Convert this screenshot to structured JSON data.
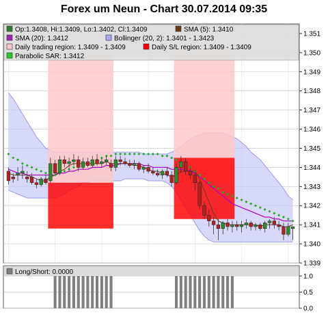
{
  "chart_data": [
    {
      "type": "candlestick",
      "title": "Forex um Neun - Chart 30.07.2014 09:35",
      "ylim": [
        1.339,
        1.3515
      ],
      "yticks": [
        "1.339",
        "1.340",
        "1.341",
        "1.342",
        "1.343",
        "1.344",
        "1.345",
        "1.346",
        "1.347",
        "1.348",
        "1.349",
        "1.350",
        "1.351"
      ],
      "grid": true,
      "legend_placement": "top-left",
      "legend": [
        {
          "text": "Op:1.3408, Hi:1.3409, Lo:1.3402, Cl:1.3409",
          "color": "#2e7d32"
        },
        {
          "text": "SMA (5): 1.3410",
          "color": "#6b3a14"
        },
        {
          "text": "SMA (20): 1.3412",
          "color": "#9c27b0"
        },
        {
          "text": "Bollinger (20, 2): 1.3401 - 1.3423",
          "color": "#a8a8f0"
        },
        {
          "text": "Daily trading region: 1.3409 - 1.3409",
          "color": "#ffc8c8"
        },
        {
          "text": "Daily S/L region: 1.3409 - 1.3409",
          "color": "#ff0000"
        },
        {
          "text": "Parabolic SAR: 1.3412",
          "color": "#22cc22"
        }
      ],
      "candles": [
        {
          "o": 1.3438,
          "h": 1.344,
          "l": 1.3431,
          "c": 1.3433
        },
        {
          "o": 1.3435,
          "h": 1.3437,
          "l": 1.3432,
          "c": 1.3434
        },
        {
          "o": 1.3436,
          "h": 1.344,
          "l": 1.3433,
          "c": 1.3437
        },
        {
          "o": 1.3437,
          "h": 1.3441,
          "l": 1.3434,
          "c": 1.3438
        },
        {
          "o": 1.3435,
          "h": 1.3438,
          "l": 1.3432,
          "c": 1.3434
        },
        {
          "o": 1.3435,
          "h": 1.3437,
          "l": 1.3431,
          "c": 1.3432
        },
        {
          "o": 1.3432,
          "h": 1.3434,
          "l": 1.3429,
          "c": 1.3431
        },
        {
          "o": 1.3431,
          "h": 1.3435,
          "l": 1.343,
          "c": 1.3434
        },
        {
          "o": 1.3434,
          "h": 1.3436,
          "l": 1.3431,
          "c": 1.3432
        },
        {
          "o": 1.3433,
          "h": 1.3445,
          "l": 1.3432,
          "c": 1.3442
        },
        {
          "o": 1.3442,
          "h": 1.3444,
          "l": 1.3436,
          "c": 1.3437
        },
        {
          "o": 1.3437,
          "h": 1.3446,
          "l": 1.3436,
          "c": 1.3444
        },
        {
          "o": 1.3444,
          "h": 1.3446,
          "l": 1.344,
          "c": 1.3442
        },
        {
          "o": 1.3442,
          "h": 1.3445,
          "l": 1.3439,
          "c": 1.3443
        },
        {
          "o": 1.3443,
          "h": 1.3447,
          "l": 1.3441,
          "c": 1.3444
        },
        {
          "o": 1.3444,
          "h": 1.3446,
          "l": 1.3438,
          "c": 1.344
        },
        {
          "o": 1.344,
          "h": 1.3445,
          "l": 1.3439,
          "c": 1.3443
        },
        {
          "o": 1.3443,
          "h": 1.3445,
          "l": 1.344,
          "c": 1.3441
        },
        {
          "o": 1.3441,
          "h": 1.3446,
          "l": 1.344,
          "c": 1.3444
        },
        {
          "o": 1.3444,
          "h": 1.3447,
          "l": 1.3441,
          "c": 1.3442
        },
        {
          "o": 1.3442,
          "h": 1.3445,
          "l": 1.344,
          "c": 1.3443
        },
        {
          "o": 1.3443,
          "h": 1.3446,
          "l": 1.3441,
          "c": 1.3444
        },
        {
          "o": 1.3442,
          "h": 1.3444,
          "l": 1.3438,
          "c": 1.344
        },
        {
          "o": 1.344,
          "h": 1.3446,
          "l": 1.3438,
          "c": 1.3444
        },
        {
          "o": 1.3444,
          "h": 1.3446,
          "l": 1.3441,
          "c": 1.3443
        },
        {
          "o": 1.3443,
          "h": 1.3445,
          "l": 1.3441,
          "c": 1.3442
        },
        {
          "o": 1.3442,
          "h": 1.3444,
          "l": 1.344,
          "c": 1.3441
        },
        {
          "o": 1.3441,
          "h": 1.3444,
          "l": 1.3439,
          "c": 1.3442
        },
        {
          "o": 1.3442,
          "h": 1.3443,
          "l": 1.3438,
          "c": 1.3439
        },
        {
          "o": 1.3439,
          "h": 1.3441,
          "l": 1.3437,
          "c": 1.344
        },
        {
          "o": 1.344,
          "h": 1.3442,
          "l": 1.3437,
          "c": 1.3438
        },
        {
          "o": 1.3438,
          "h": 1.344,
          "l": 1.3436,
          "c": 1.3437
        },
        {
          "o": 1.3437,
          "h": 1.3439,
          "l": 1.3435,
          "c": 1.3436
        },
        {
          "o": 1.3436,
          "h": 1.3439,
          "l": 1.3434,
          "c": 1.3438
        },
        {
          "o": 1.3438,
          "h": 1.344,
          "l": 1.3435,
          "c": 1.3436
        },
        {
          "o": 1.3436,
          "h": 1.3438,
          "l": 1.343,
          "c": 1.3432
        },
        {
          "o": 1.3432,
          "h": 1.3442,
          "l": 1.3431,
          "c": 1.344
        },
        {
          "o": 1.344,
          "h": 1.3446,
          "l": 1.3437,
          "c": 1.3443
        },
        {
          "o": 1.3443,
          "h": 1.3445,
          "l": 1.3436,
          "c": 1.3438
        },
        {
          "o": 1.3438,
          "h": 1.344,
          "l": 1.3434,
          "c": 1.3436
        },
        {
          "o": 1.3436,
          "h": 1.3439,
          "l": 1.3428,
          "c": 1.3432
        },
        {
          "o": 1.3432,
          "h": 1.3433,
          "l": 1.3418,
          "c": 1.342
        },
        {
          "o": 1.342,
          "h": 1.3422,
          "l": 1.3413,
          "c": 1.3415
        },
        {
          "o": 1.3415,
          "h": 1.3418,
          "l": 1.3409,
          "c": 1.3412
        },
        {
          "o": 1.3412,
          "h": 1.3414,
          "l": 1.3405,
          "c": 1.341
        },
        {
          "o": 1.341,
          "h": 1.3413,
          "l": 1.3402,
          "c": 1.3408
        },
        {
          "o": 1.3408,
          "h": 1.3412,
          "l": 1.3405,
          "c": 1.3411
        },
        {
          "o": 1.3411,
          "h": 1.3413,
          "l": 1.3407,
          "c": 1.3409
        },
        {
          "o": 1.3409,
          "h": 1.3412,
          "l": 1.3406,
          "c": 1.341
        },
        {
          "o": 1.341,
          "h": 1.3412,
          "l": 1.3407,
          "c": 1.3409
        },
        {
          "o": 1.3409,
          "h": 1.3412,
          "l": 1.3406,
          "c": 1.341
        },
        {
          "o": 1.341,
          "h": 1.3413,
          "l": 1.3408,
          "c": 1.3411
        },
        {
          "o": 1.3411,
          "h": 1.3412,
          "l": 1.3407,
          "c": 1.3409
        },
        {
          "o": 1.3409,
          "h": 1.3411,
          "l": 1.3407,
          "c": 1.341
        },
        {
          "o": 1.341,
          "h": 1.3411,
          "l": 1.3407,
          "c": 1.3408
        },
        {
          "o": 1.3408,
          "h": 1.3412,
          "l": 1.3406,
          "c": 1.3411
        },
        {
          "o": 1.3411,
          "h": 1.3413,
          "l": 1.3408,
          "c": 1.3412
        },
        {
          "o": 1.3412,
          "h": 1.3414,
          "l": 1.3408,
          "c": 1.341
        },
        {
          "o": 1.341,
          "h": 1.3412,
          "l": 1.3407,
          "c": 1.3409
        },
        {
          "o": 1.3409,
          "h": 1.3411,
          "l": 1.3402,
          "c": 1.3405
        },
        {
          "o": 1.3405,
          "h": 1.3411,
          "l": 1.3404,
          "c": 1.3409
        },
        {
          "o": 1.3408,
          "h": 1.3409,
          "l": 1.3402,
          "c": 1.3409
        }
      ],
      "sma5": [
        1.3437,
        1.3436,
        1.3436,
        1.3436,
        1.3436,
        1.3435,
        1.3434,
        1.3433,
        1.3433,
        1.3435,
        1.3436,
        1.3438,
        1.3439,
        1.3441,
        1.3442,
        1.3442,
        1.3442,
        1.3442,
        1.3442,
        1.3442,
        1.3442,
        1.3443,
        1.3442,
        1.3442,
        1.3442,
        1.3442,
        1.3442,
        1.3441,
        1.3441,
        1.344,
        1.3439,
        1.3438,
        1.3438,
        1.3437,
        1.3436,
        1.3435,
        1.3436,
        1.3438,
        1.3438,
        1.3438,
        1.3438,
        1.3434,
        1.3428,
        1.3422,
        1.3416,
        1.3412,
        1.3411,
        1.341,
        1.341,
        1.341,
        1.341,
        1.341,
        1.341,
        1.341,
        1.3409,
        1.341,
        1.341,
        1.341,
        1.341,
        1.3409,
        1.3409,
        1.341
      ],
      "sma20": [
        1.3439,
        1.3438,
        1.3437,
        1.3437,
        1.3436,
        1.3436,
        1.3436,
        1.3436,
        1.3436,
        1.3436,
        1.3436,
        1.3437,
        1.3437,
        1.3438,
        1.3438,
        1.3439,
        1.3439,
        1.3439,
        1.344,
        1.344,
        1.344,
        1.3441,
        1.3441,
        1.3441,
        1.3442,
        1.3442,
        1.3442,
        1.3442,
        1.3442,
        1.3441,
        1.3441,
        1.344,
        1.344,
        1.344,
        1.344,
        1.3439,
        1.3439,
        1.3439,
        1.3439,
        1.3438,
        1.3437,
        1.3435,
        1.3433,
        1.3431,
        1.3429,
        1.3427,
        1.3425,
        1.3423,
        1.3421,
        1.342,
        1.3419,
        1.3418,
        1.3417,
        1.3416,
        1.3415,
        1.3414,
        1.3414,
        1.3413,
        1.3413,
        1.3412,
        1.3412,
        1.3412
      ],
      "bollinger_upper": [
        1.3479,
        1.3476,
        1.3472,
        1.3468,
        1.3464,
        1.346,
        1.3456,
        1.3453,
        1.345,
        1.3449,
        1.3448,
        1.3448,
        1.3448,
        1.3448,
        1.3448,
        1.3448,
        1.3448,
        1.3448,
        1.3448,
        1.3448,
        1.3448,
        1.3448,
        1.3448,
        1.3448,
        1.3448,
        1.3448,
        1.3448,
        1.3448,
        1.3448,
        1.3447,
        1.3447,
        1.3447,
        1.3447,
        1.3447,
        1.3447,
        1.3448,
        1.3449,
        1.3451,
        1.3453,
        1.3455,
        1.3456,
        1.3457,
        1.3458,
        1.3458,
        1.3458,
        1.3458,
        1.3458,
        1.3457,
        1.3456,
        1.3455,
        1.3453,
        1.3451,
        1.3448,
        1.3446,
        1.3444,
        1.3441,
        1.3438,
        1.3435,
        1.3432,
        1.3429,
        1.3425,
        1.3423
      ],
      "bollinger_lower": [
        1.3428,
        1.3427,
        1.3426,
        1.3425,
        1.3424,
        1.3424,
        1.3424,
        1.3424,
        1.3424,
        1.3424,
        1.3424,
        1.3425,
        1.3426,
        1.3428,
        1.3429,
        1.343,
        1.3432,
        1.3432,
        1.3433,
        1.3433,
        1.3433,
        1.3433,
        1.3433,
        1.3433,
        1.3433,
        1.3434,
        1.3434,
        1.3434,
        1.3434,
        1.3434,
        1.3433,
        1.3433,
        1.3433,
        1.3433,
        1.3432,
        1.343,
        1.3427,
        1.3423,
        1.3419,
        1.3415,
        1.3411,
        1.3407,
        1.3404,
        1.3402,
        1.3401,
        1.3401,
        1.3401,
        1.3401,
        1.3401,
        1.3401,
        1.3401,
        1.3401,
        1.3401,
        1.3401,
        1.3401,
        1.3401,
        1.3401,
        1.3401,
        1.3401,
        1.3401,
        1.3401,
        1.3401
      ],
      "parabolic_sar": [
        1.3447,
        1.3445,
        1.3444,
        1.3442,
        1.3441,
        1.344,
        1.3439,
        1.3438,
        1.3437,
        1.3436,
        1.3436,
        1.3437,
        1.3438,
        1.3439,
        1.344,
        1.3441,
        1.3441,
        1.3442,
        1.3443,
        1.3444,
        1.3445,
        1.3446,
        1.3446,
        1.3447,
        1.3447,
        1.3447,
        1.3447,
        1.3447,
        1.3447,
        1.3447,
        1.3447,
        1.3447,
        1.3447,
        1.3446,
        1.3446,
        1.3445,
        1.3444,
        1.3442,
        1.3441,
        1.344,
        1.3438,
        1.3436,
        1.3434,
        1.3432,
        1.343,
        1.3429,
        1.3427,
        1.3426,
        1.3425,
        1.3424,
        1.3423,
        1.3422,
        1.3421,
        1.342,
        1.3419,
        1.3418,
        1.3417,
        1.3416,
        1.3415,
        1.3414,
        1.3413,
        1.3412
      ],
      "trading_regions": [
        {
          "start_index": 9,
          "end_index": 22,
          "low": 1.3432,
          "high": 1.3499
        },
        {
          "start_index": 36,
          "end_index": 48,
          "low": 1.3432,
          "high": 1.3503
        }
      ],
      "sl_regions": [
        {
          "start_index": 9,
          "end_index": 22,
          "low": 1.3408,
          "high": 1.3432
        },
        {
          "start_index": 36,
          "end_index": 48,
          "low": 1.3413,
          "high": 1.3445
        }
      ]
    },
    {
      "type": "bar",
      "legend": [
        {
          "text": "Long/Short: 0.0000",
          "color": "#808080"
        }
      ],
      "ylim": [
        0,
        1
      ],
      "yticks": [
        "1.0",
        "0.5",
        "0.0"
      ],
      "bars": [
        {
          "index": 10,
          "value": 1
        },
        {
          "index": 11,
          "value": 1
        },
        {
          "index": 12,
          "value": 1
        },
        {
          "index": 13,
          "value": 1
        },
        {
          "index": 14,
          "value": 1
        },
        {
          "index": 15,
          "value": 1
        },
        {
          "index": 16,
          "value": 1
        },
        {
          "index": 17,
          "value": 1
        },
        {
          "index": 18,
          "value": 1
        },
        {
          "index": 19,
          "value": 1
        },
        {
          "index": 20,
          "value": 1
        },
        {
          "index": 21,
          "value": 1
        },
        {
          "index": 22,
          "value": 1
        },
        {
          "index": 36,
          "value": 1
        },
        {
          "index": 37,
          "value": 1
        },
        {
          "index": 38,
          "value": 1
        },
        {
          "index": 39,
          "value": 1
        },
        {
          "index": 40,
          "value": 1
        },
        {
          "index": 41,
          "value": 1
        },
        {
          "index": 42,
          "value": 1
        },
        {
          "index": 43,
          "value": 1
        },
        {
          "index": 44,
          "value": 1
        },
        {
          "index": 45,
          "value": 1
        },
        {
          "index": 46,
          "value": 1
        },
        {
          "index": 47,
          "value": 1
        },
        {
          "index": 48,
          "value": 1
        }
      ]
    }
  ],
  "colors": {
    "up": "#2e8b2e",
    "down": "#b22222",
    "sma5": "#6b3a14",
    "sma20": "#b000c8",
    "band_fill": "#c8c8f5",
    "band_line": "#9a9af0",
    "trading_region": "#ffc8c8",
    "sl_region": "#ff0000",
    "sar": "#22aa22",
    "bar": "#808080"
  }
}
